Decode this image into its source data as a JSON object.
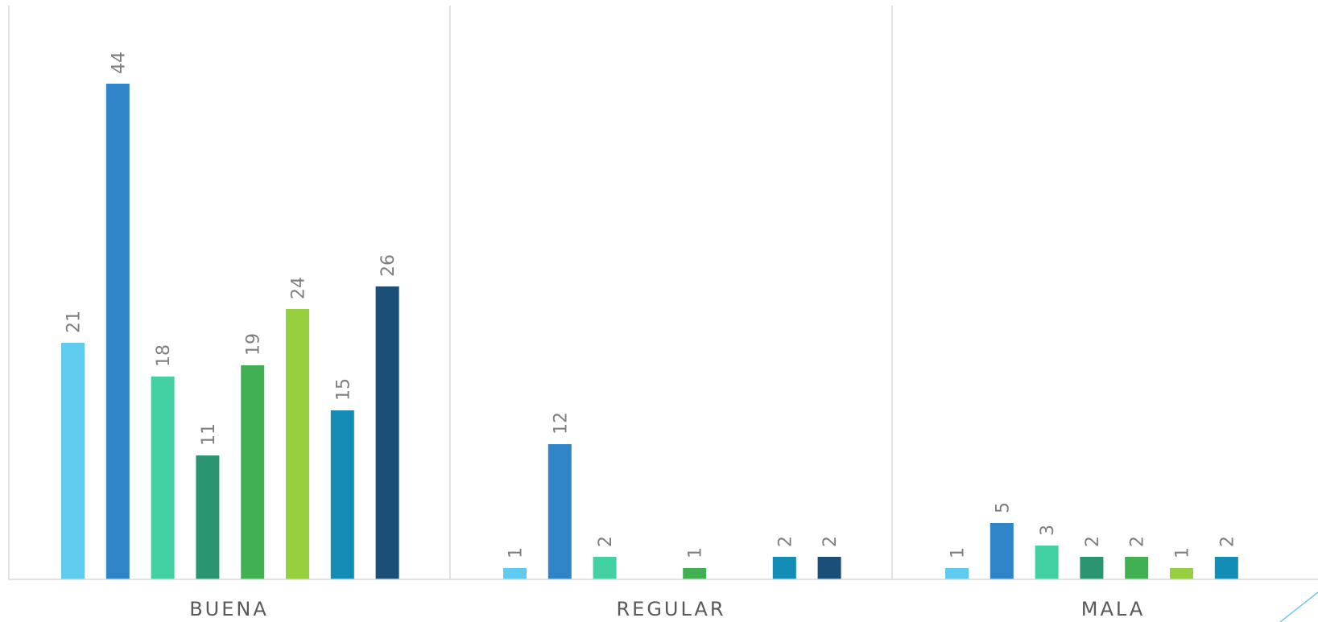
{
  "chart_data": {
    "type": "bar",
    "categories": [
      "BUENA",
      "REGULAR",
      "MALA"
    ],
    "series": [
      {
        "values": [
          21,
          1,
          1
        ],
        "color": "#5ecbef"
      },
      {
        "values": [
          44,
          12,
          5
        ],
        "color": "#2f85c7"
      },
      {
        "values": [
          18,
          2,
          3
        ],
        "color": "#43d0a2"
      },
      {
        "values": [
          11,
          null,
          2
        ],
        "color": "#2b9470"
      },
      {
        "values": [
          19,
          1,
          2
        ],
        "color": "#41b053"
      },
      {
        "values": [
          24,
          null,
          1
        ],
        "color": "#96d03f"
      },
      {
        "values": [
          15,
          2,
          2
        ],
        "color": "#138cb6"
      },
      {
        "values": [
          26,
          2,
          null
        ],
        "color": "#1b4f78"
      }
    ],
    "ylim": [
      0,
      50
    ],
    "data_labels": true,
    "data_label_rotation": "vertical",
    "grid": false,
    "legend": "none",
    "category_dividers": true
  }
}
